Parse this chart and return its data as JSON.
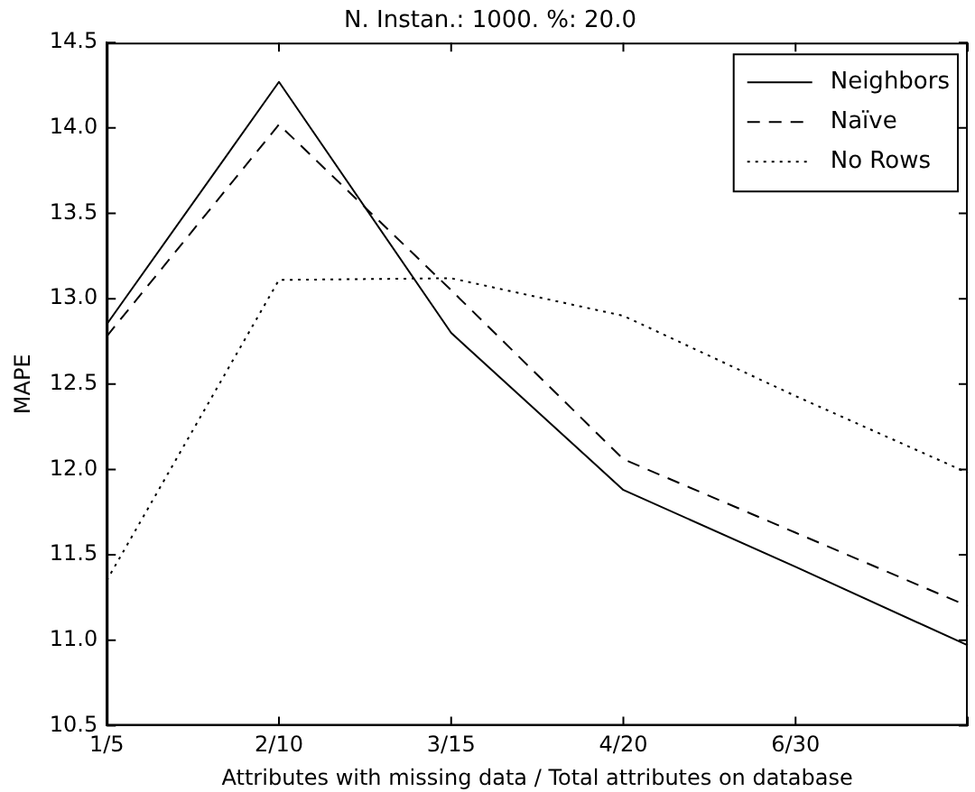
{
  "chart_data": {
    "type": "line",
    "title": "N. Instan.: 1000. %: 20.0",
    "xlabel": "Attributes with missing data / Total attributes on database",
    "ylabel": "MAPE",
    "categories": [
      "1/5",
      "2/10",
      "3/15",
      "4/20",
      "6/30",
      null
    ],
    "series": [
      {
        "name": "Neighbors",
        "color": "#000000",
        "line_style": "solid",
        "values": [
          12.85,
          14.27,
          12.8,
          11.88,
          11.43,
          10.97
        ]
      },
      {
        "name": "Naïve",
        "color": "#000000",
        "line_style": "dashed",
        "values": [
          12.78,
          14.02,
          13.05,
          12.06,
          11.63,
          11.2
        ]
      },
      {
        "name": "No Rows",
        "color": "#000000",
        "line_style": "dotted",
        "values": [
          11.35,
          13.11,
          13.12,
          12.9,
          12.43,
          11.98
        ]
      }
    ],
    "ylim": [
      10.5,
      14.5
    ],
    "yticks": [
      {
        "value": 10.5,
        "label": "10.5"
      },
      {
        "value": 11,
        "label": "11.0"
      },
      {
        "value": 11.5,
        "label": "11.5"
      },
      {
        "value": 12,
        "label": "12.0"
      },
      {
        "value": 12.5,
        "label": "12.5"
      },
      {
        "value": 13,
        "label": "13.0"
      },
      {
        "value": 13.5,
        "label": "13.5"
      },
      {
        "value": 14,
        "label": "14.0"
      },
      {
        "value": 14.5,
        "label": "14.5"
      }
    ],
    "grid": false,
    "legend": "top right",
    "marker": "none"
  }
}
